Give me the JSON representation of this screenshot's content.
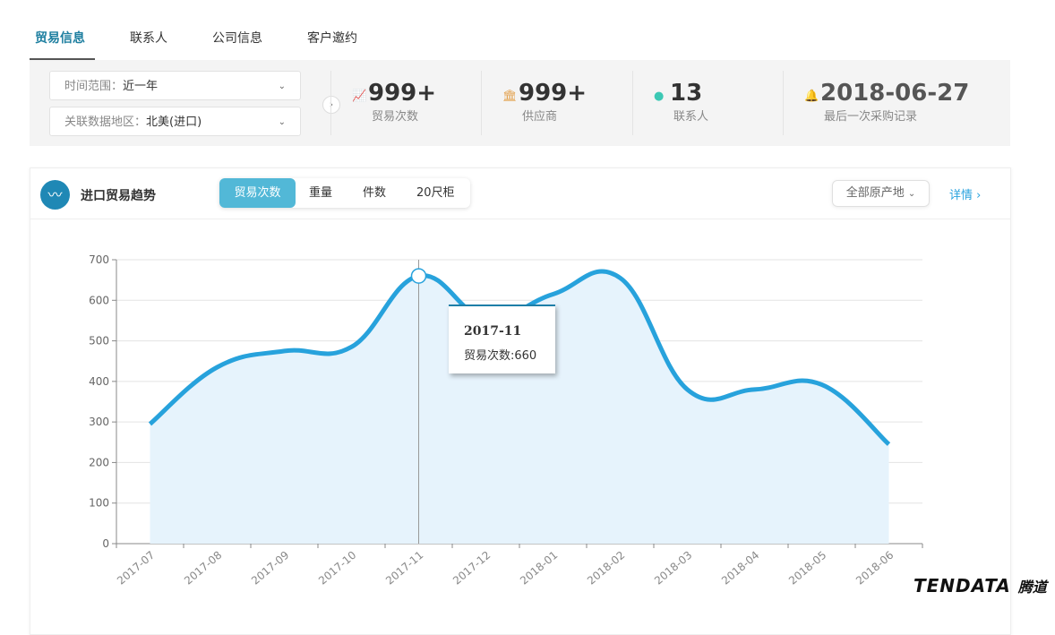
{
  "tabs": [
    {
      "label": "贸易信息",
      "active": true
    },
    {
      "label": "联系人"
    },
    {
      "label": "公司信息"
    },
    {
      "label": "客户邀约"
    }
  ],
  "filters": {
    "time_label": "时间范围：",
    "time_value": "近一年",
    "region_label": "关联数据地区：",
    "region_value": "北美(进口)"
  },
  "stats": [
    {
      "icon": "trend-chart-icon",
      "value": "999+",
      "label": "贸易次数",
      "color": "#2a86c6"
    },
    {
      "icon": "bank-icon",
      "value": "999+",
      "label": "供应商",
      "color": "#e3a24f"
    },
    {
      "icon": "person-icon",
      "value": "13",
      "label": "联系人",
      "color": "#3cc8b4"
    },
    {
      "icon": "bell-icon",
      "value": "2018-06-27",
      "label": "最后一次采购记录",
      "color": "#2aa3de"
    }
  ],
  "panel": {
    "title": "进口贸易趋势",
    "segments": [
      "贸易次数",
      "重量",
      "件数",
      "20尺柜"
    ],
    "active_segment": "贸易次数",
    "origin_select": "全部原产地",
    "detail_link": "详情 ›"
  },
  "tooltip": {
    "title": "2017-11",
    "text": "贸易次数:660"
  },
  "brand": {
    "name": "TENDATA",
    "cn": "腾道"
  },
  "chart_data": {
    "type": "area",
    "categories": [
      "2017-07",
      "2017-08",
      "2017-09",
      "2017-10",
      "2017-11",
      "2017-12",
      "2018-01",
      "2018-02",
      "2018-03",
      "2018-04",
      "2018-05",
      "2018-06"
    ],
    "series": [
      {
        "name": "贸易次数",
        "values": [
          295,
          435,
          475,
          485,
          660,
          555,
          615,
          655,
          380,
          380,
          392,
          245
        ]
      }
    ],
    "ylim": [
      0,
      700
    ],
    "yticks": [
      0,
      100,
      200,
      300,
      400,
      500,
      600,
      700
    ],
    "grid": true,
    "line_color": "#27a2dc",
    "fill_color": "#e6f3fc",
    "highlight_index": 4
  }
}
